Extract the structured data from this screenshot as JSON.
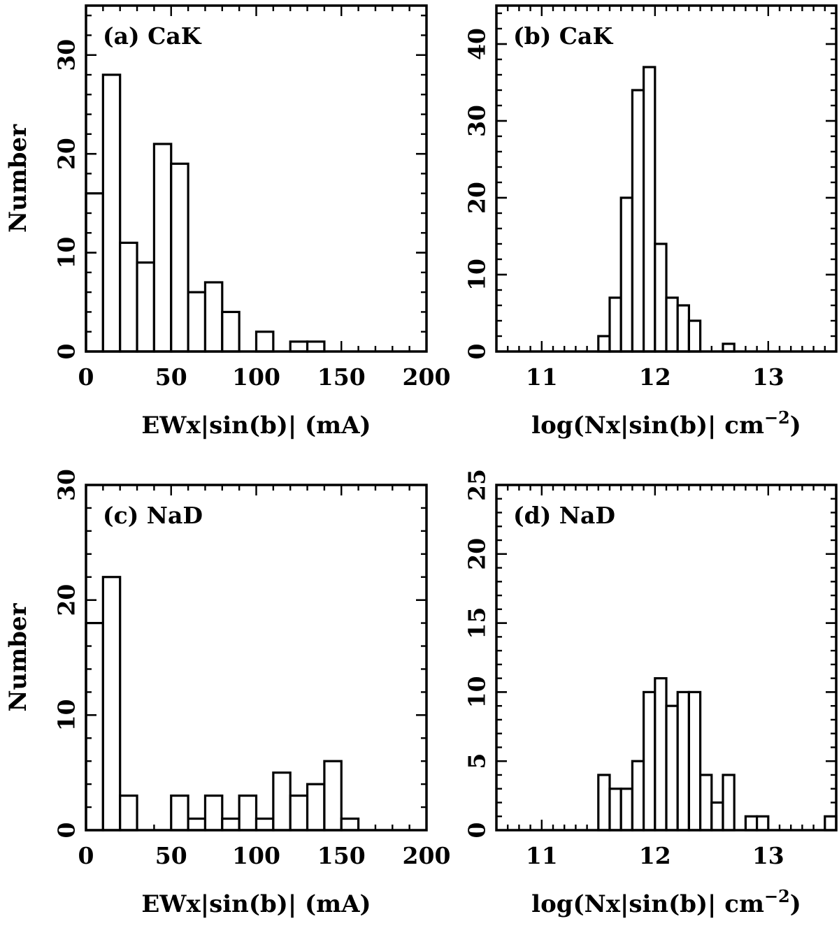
{
  "figure": {
    "ylabel": "Number"
  },
  "chart_data": [
    {
      "type": "bar",
      "panel_label": "(a) CaK",
      "xlabel": "EWx|sin(b)| (mA)",
      "ylabel": "Number",
      "xlim": [
        0,
        200
      ],
      "ylim": [
        0,
        35
      ],
      "x_major_ticks": [
        0,
        50,
        100,
        150,
        200
      ],
      "x_minor_step": 10,
      "y_major_ticks": [
        0,
        10,
        20,
        30
      ],
      "y_minor_step": 2,
      "bin_width": 10,
      "bin_starts": [
        0,
        10,
        20,
        30,
        40,
        50,
        60,
        70,
        80,
        90,
        100,
        110,
        120,
        130
      ],
      "values": [
        16,
        28,
        11,
        9,
        21,
        19,
        6,
        7,
        4,
        0,
        2,
        0,
        1,
        1
      ]
    },
    {
      "type": "bar",
      "panel_label": "(b) CaK",
      "xlabel": "log(Nx|sin(b)| cm",
      "xlabel_sup": "−2",
      "xlabel_close": ")",
      "xlim": [
        10.6,
        13.6
      ],
      "ylim": [
        0,
        45
      ],
      "x_major_ticks": [
        11,
        12,
        13
      ],
      "x_minor_step": 0.1,
      "y_major_ticks": [
        0,
        10,
        20,
        30,
        40
      ],
      "y_minor_step": 2,
      "bin_width": 0.1,
      "bin_starts": [
        11.5,
        11.6,
        11.7,
        11.8,
        11.9,
        12.0,
        12.1,
        12.2,
        12.3,
        12.4,
        12.5,
        12.6
      ],
      "values": [
        2,
        7,
        20,
        34,
        37,
        14,
        7,
        6,
        4,
        0,
        0,
        1
      ]
    },
    {
      "type": "bar",
      "panel_label": "(c) NaD",
      "xlabel": "EWx|sin(b)| (mA)",
      "ylabel": "Number",
      "xlim": [
        0,
        200
      ],
      "ylim": [
        0,
        30
      ],
      "x_major_ticks": [
        0,
        50,
        100,
        150,
        200
      ],
      "x_minor_step": 10,
      "y_major_ticks": [
        0,
        10,
        20,
        30
      ],
      "y_minor_step": 2,
      "bin_width": 10,
      "bin_starts": [
        0,
        10,
        20,
        30,
        40,
        50,
        60,
        70,
        80,
        90,
        100,
        110,
        120,
        130,
        140,
        150
      ],
      "values": [
        18,
        22,
        3,
        0,
        0,
        3,
        1,
        3,
        1,
        3,
        1,
        5,
        3,
        4,
        6,
        1
      ]
    },
    {
      "type": "bar",
      "panel_label": "(d) NaD",
      "xlabel": "log(Nx|sin(b)| cm",
      "xlabel_sup": "−2",
      "xlabel_close": ")",
      "xlim": [
        10.6,
        13.6
      ],
      "ylim": [
        0,
        25
      ],
      "x_major_ticks": [
        11,
        12,
        13
      ],
      "x_minor_step": 0.1,
      "y_major_ticks": [
        0,
        5,
        10,
        15,
        20,
        25
      ],
      "y_minor_step": 1,
      "bin_width": 0.1,
      "bin_starts": [
        11.5,
        11.6,
        11.7,
        11.8,
        11.9,
        12.0,
        12.1,
        12.2,
        12.3,
        12.4,
        12.5,
        12.6,
        12.7,
        12.8,
        12.9,
        13.0,
        13.1,
        13.2,
        13.3,
        13.4,
        13.5
      ],
      "values": [
        4,
        3,
        3,
        5,
        10,
        11,
        9,
        10,
        10,
        4,
        2,
        4,
        0,
        1,
        1,
        0,
        0,
        0,
        0,
        0,
        1
      ]
    }
  ]
}
